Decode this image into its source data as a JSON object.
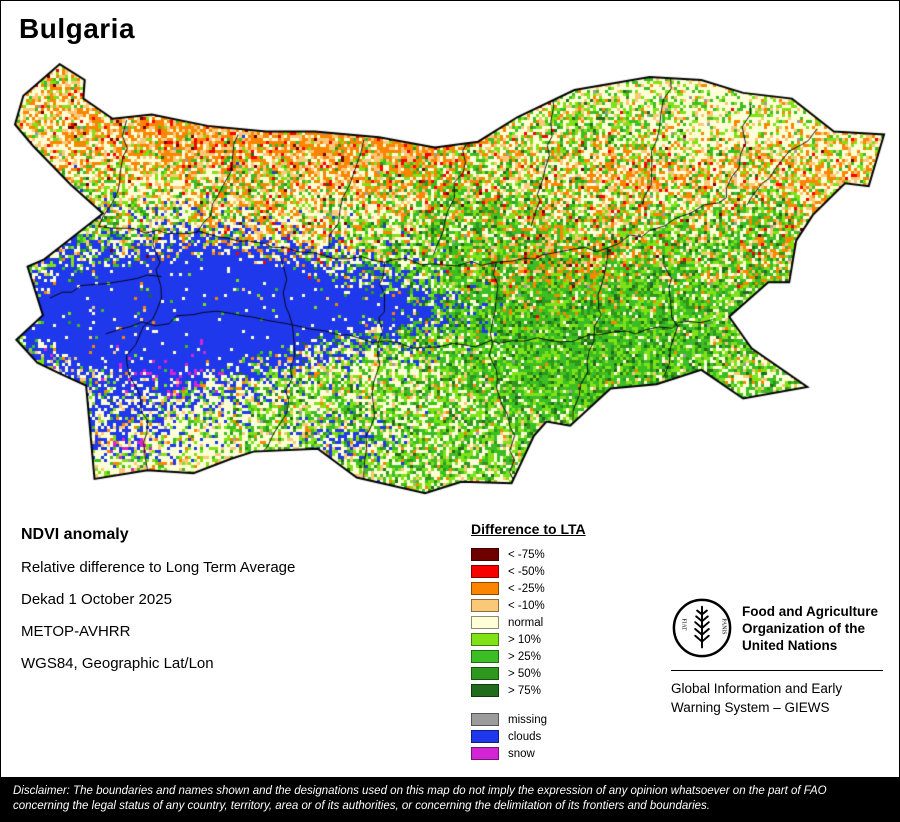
{
  "page": {
    "title": "Bulgaria"
  },
  "map": {
    "country": "Bulgaria"
  },
  "info": {
    "heading": "NDVI anomaly",
    "lines": [
      "Relative difference to Long Term Average",
      "Dekad 1 October 2025",
      "METOP-AVHRR",
      "WGS84, Geographic Lat/Lon"
    ]
  },
  "legend": {
    "title": "Difference to LTA",
    "entries": [
      {
        "label": "< -75%",
        "color": "#6E0000"
      },
      {
        "label": "< -50%",
        "color": "#F60000"
      },
      {
        "label": "< -25%",
        "color": "#F98500"
      },
      {
        "label": "< -10%",
        "color": "#FBC878"
      },
      {
        "label": "normal",
        "color": "#FEFFD6"
      },
      {
        "label": "> 10%",
        "color": "#7FE216"
      },
      {
        "label": "> 25%",
        "color": "#3BBE23"
      },
      {
        "label": "> 50%",
        "color": "#2E971E"
      },
      {
        "label": "> 75%",
        "color": "#206B1C"
      }
    ],
    "extra_entries": [
      {
        "label": "missing",
        "color": "#9C9C9C"
      },
      {
        "label": "clouds",
        "color": "#2038EC"
      },
      {
        "label": "snow",
        "color": "#D425D4"
      }
    ]
  },
  "fao": {
    "logo_icon": "fao-wheat-emblem",
    "motto_left": "FIAT",
    "motto_right": "PANIS",
    "org_lines": [
      "Food and Agriculture",
      "Organization of the",
      "United Nations"
    ],
    "giews_lines": [
      "Global Information and Early",
      "Warning System – GIEWS"
    ]
  },
  "disclaimer": {
    "line1": "Disclaimer: The boundaries and names shown and the designations used on this map do not imply the expression of any opinion whatsoever on the part of FAO",
    "line2": "concerning the legal status of any country, territory, area or of its authorities, or concerning the delimitation of its frontiers and boundaries."
  }
}
